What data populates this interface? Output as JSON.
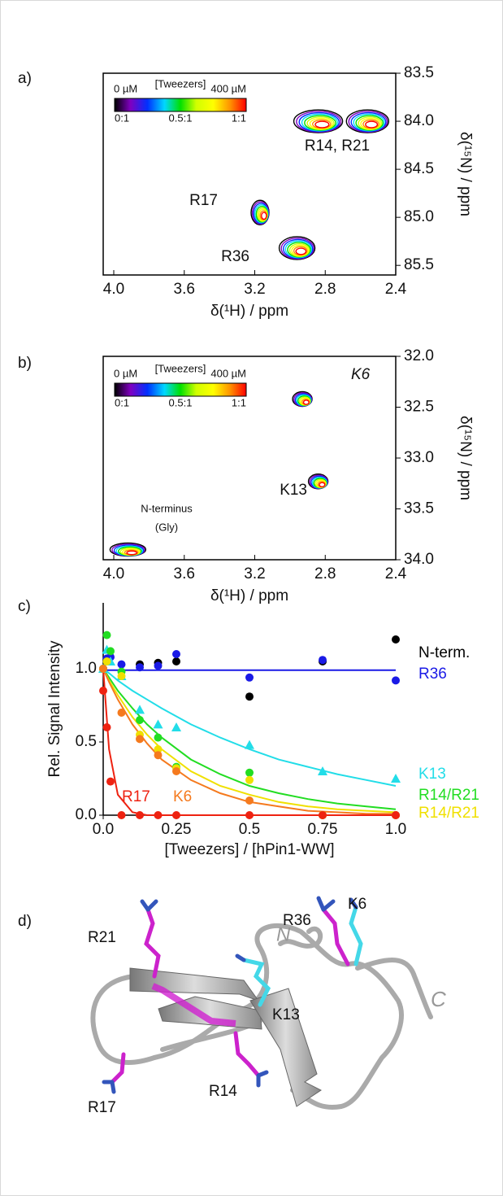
{
  "chart_data": [
    {
      "type": "spectrum",
      "panel": "a)",
      "xlabel": "δ(¹H) / ppm",
      "ylabel": "δ(¹⁵N) / ppm",
      "xlim": [
        4.06,
        2.4
      ],
      "ylim": [
        83.5,
        85.6
      ],
      "xticks": [
        {
          "value": 4,
          "label": "4.0"
        },
        3.6,
        3.2,
        2.8,
        2.4
      ],
      "yticks": [
        83.5,
        {
          "value": 84,
          "label": "84.0"
        },
        84.5,
        {
          "value": 85,
          "label": "85.0"
        },
        85.5
      ],
      "colorbar": {
        "start": "0 µM",
        "title": "[Tweezers]",
        "end": "400 µM",
        "ratios": [
          "0:1",
          "0.5:1",
          "1:1"
        ],
        "colors": [
          "#000000",
          "#8000c0",
          "#0030ff",
          "#00d8ff",
          "#00e000",
          "#d0ff00",
          "#ffff00",
          "#ff9000",
          "#ff0000"
        ]
      },
      "x": [
        2.84,
        2.56,
        3.17,
        2.96
      ],
      "y": [
        84.0,
        84.0,
        84.95,
        85.32
      ],
      "annotations": [
        "R14, R21",
        "R17",
        "R36"
      ]
    },
    {
      "type": "spectrum",
      "panel": "b)",
      "xlabel": "δ(¹H) / ppm",
      "ylabel": "δ(¹⁵N) / ppm",
      "xlim": [
        4.06,
        2.4
      ],
      "ylim": [
        32,
        34
      ],
      "xticks": [
        {
          "value": 4,
          "label": "4.0"
        },
        3.6,
        3.2,
        2.8,
        2.4
      ],
      "yticks": [
        {
          "value": 32,
          "label": "32.0"
        },
        32.5,
        {
          "value": 33,
          "label": "33.0"
        },
        33.5,
        {
          "value": 34,
          "label": "34.0"
        }
      ],
      "colorbar": {
        "start": "0 µM",
        "title": "[Tweezers]",
        "end": "400 µM",
        "ratios": [
          "0:1",
          "0.5:1",
          "1:1"
        ],
        "colors": [
          "#000000",
          "#8000c0",
          "#0030ff",
          "#00d8ff",
          "#00e000",
          "#d0ff00",
          "#ffff00",
          "#ff9000",
          "#ff0000"
        ]
      },
      "x": [
        2.93,
        2.84,
        3.92
      ],
      "y": [
        32.42,
        33.23,
        33.9
      ],
      "annotations": [
        "K6",
        "K13",
        "N-terminus",
        "(Gly)"
      ]
    },
    {
      "type": "scatter",
      "panel": "c)",
      "xlabel": "[Tweezers] / [hPin1-WW]",
      "ylabel": "Rel. Signal Intensity",
      "xlim": [
        0,
        1
      ],
      "ylim": [
        0,
        1.45
      ],
      "xticks": [
        {
          "value": 0,
          "label": "0.0"
        },
        0.25,
        0.5,
        0.75,
        {
          "value": 1,
          "label": "1.0"
        }
      ],
      "yticks": [
        {
          "value": 0,
          "label": "0.0"
        },
        0.5,
        {
          "value": 1,
          "label": "1.0"
        }
      ],
      "x": [
        0,
        0.0125,
        0.025,
        0.0625,
        0.125,
        0.1875,
        0.25,
        0.5,
        0.75,
        1.0
      ],
      "fit_x": [
        0,
        0.02,
        0.05,
        0.1,
        0.15,
        0.2,
        0.3,
        0.4,
        0.5,
        0.6,
        0.7,
        0.8,
        0.9,
        1.0
      ],
      "series": [
        {
          "name": "N-term.",
          "color": "#000000",
          "marker": "circle",
          "values": [
            1.0,
            1.05,
            null,
            null,
            1.03,
            1.04,
            1.05,
            0.81,
            1.05,
            1.2
          ],
          "fit": null
        },
        {
          "name": "R36",
          "color": "#1a1ae6",
          "marker": "circle",
          "values": [
            1.0,
            1.07,
            1.08,
            1.03,
            1.01,
            1.02,
            1.1,
            0.94,
            1.06,
            0.92
          ],
          "fit": [
            0.99,
            0.99,
            0.99,
            0.99,
            0.99,
            0.99,
            0.99,
            0.99,
            0.99,
            0.99,
            0.99,
            0.99,
            0.99,
            0.99
          ]
        },
        {
          "name": "K13",
          "color": "#22dde8",
          "marker": "triangle",
          "values": [
            1.0,
            1.13,
            1.05,
            0.95,
            0.72,
            0.62,
            0.6,
            0.48,
            0.3,
            0.25
          ],
          "fit": [
            1.0,
            0.97,
            0.92,
            0.85,
            0.79,
            0.73,
            0.62,
            0.53,
            0.45,
            0.38,
            0.33,
            0.28,
            0.24,
            0.2
          ]
        },
        {
          "name": "R14/R21",
          "color": "#22dd22",
          "marker": "circle",
          "values": [
            1.0,
            1.23,
            1.12,
            0.98,
            0.65,
            0.53,
            0.33,
            0.29,
            0.0,
            0.0
          ],
          "fit": [
            1.0,
            0.94,
            0.85,
            0.73,
            0.62,
            0.53,
            0.38,
            0.28,
            0.2,
            0.15,
            0.11,
            0.08,
            0.06,
            0.04
          ]
        },
        {
          "name": "R14/R21",
          "color": "#f0e000",
          "marker": "circle",
          "values": [
            1.0,
            1.05,
            null,
            0.95,
            0.55,
            0.45,
            0.32,
            0.24,
            0.0,
            0.0
          ],
          "fit": [
            1.0,
            0.92,
            0.82,
            0.67,
            0.55,
            0.45,
            0.3,
            0.2,
            0.14,
            0.09,
            0.06,
            0.04,
            0.03,
            0.02
          ]
        },
        {
          "name": "K6",
          "color": "#f57a1e",
          "marker": "circle",
          "values": [
            1.0,
            null,
            null,
            0.7,
            0.52,
            0.41,
            0.3,
            0.1,
            0.0,
            0.0
          ],
          "fit": [
            1.0,
            0.91,
            0.79,
            0.62,
            0.49,
            0.38,
            0.24,
            0.15,
            0.09,
            0.06,
            0.03,
            0.02,
            0.01,
            0.01
          ]
        },
        {
          "name": "R17",
          "color": "#ee2211",
          "marker": "circle",
          "values": [
            0.85,
            0.6,
            0.23,
            0.0,
            0.0,
            0.0,
            0.0,
            0.0,
            0.0,
            0.0
          ],
          "fit": [
            1.0,
            0.45,
            0.14,
            0.02,
            0.0,
            0.0,
            0.0,
            0.0,
            0.0,
            0.0,
            0.0,
            0.0,
            0.0,
            0.0
          ]
        }
      ]
    }
  ],
  "structure": {
    "panel": "d)",
    "labels": [
      "R21",
      "R36",
      "K6",
      "N",
      "C",
      "K13",
      "R17",
      "R14"
    ]
  }
}
